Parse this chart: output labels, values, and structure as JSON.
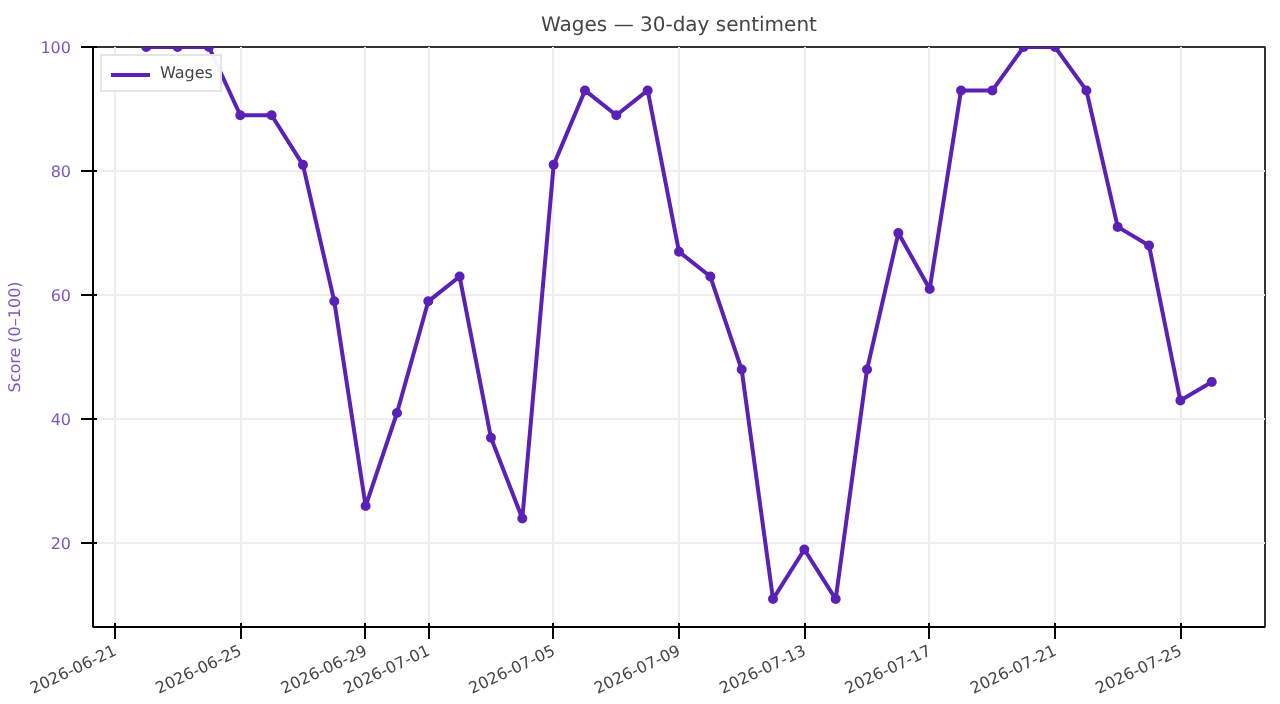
{
  "chart_data": {
    "type": "line",
    "title": "Wages — 30-day sentiment",
    "ylabel": "Score (0–100)",
    "x": [
      "2026-06-22",
      "2026-06-23",
      "2026-06-24",
      "2026-06-25",
      "2026-06-26",
      "2026-06-27",
      "2026-06-28",
      "2026-06-29",
      "2026-06-30",
      "2026-07-01",
      "2026-07-02",
      "2026-07-03",
      "2026-07-04",
      "2026-07-05",
      "2026-07-06",
      "2026-07-07",
      "2026-07-08",
      "2026-07-09",
      "2026-07-10",
      "2026-07-11",
      "2026-07-12",
      "2026-07-13",
      "2026-07-14",
      "2026-07-15",
      "2026-07-16",
      "2026-07-17",
      "2026-07-18",
      "2026-07-19",
      "2026-07-20",
      "2026-07-21",
      "2026-07-22",
      "2026-07-23",
      "2026-07-24",
      "2026-07-25",
      "2026-07-26"
    ],
    "series": [
      {
        "name": "Wages",
        "color": "#5b21b6",
        "values": [
          100,
          100,
          100,
          89,
          89,
          81,
          59,
          26,
          41,
          59,
          63,
          37,
          24,
          81,
          93,
          89,
          93,
          67,
          63,
          48,
          11,
          19,
          11,
          48,
          70,
          61,
          93,
          93,
          100,
          100,
          93,
          71,
          68,
          43,
          46
        ]
      }
    ],
    "xlim": [
      "2026-06-20T07:12",
      "2026-07-27T16:48"
    ],
    "xticks": [
      "2026-06-21",
      "2026-06-25",
      "2026-06-29",
      "2026-07-01",
      "2026-07-05",
      "2026-07-09",
      "2026-07-13",
      "2026-07-17",
      "2026-07-21",
      "2026-07-25"
    ],
    "ylim": [
      6.5,
      100
    ],
    "yticks": [
      20,
      40,
      60,
      80,
      100
    ],
    "grid": true,
    "legend": "top left",
    "marker": "circle",
    "line_style": "solid"
  }
}
